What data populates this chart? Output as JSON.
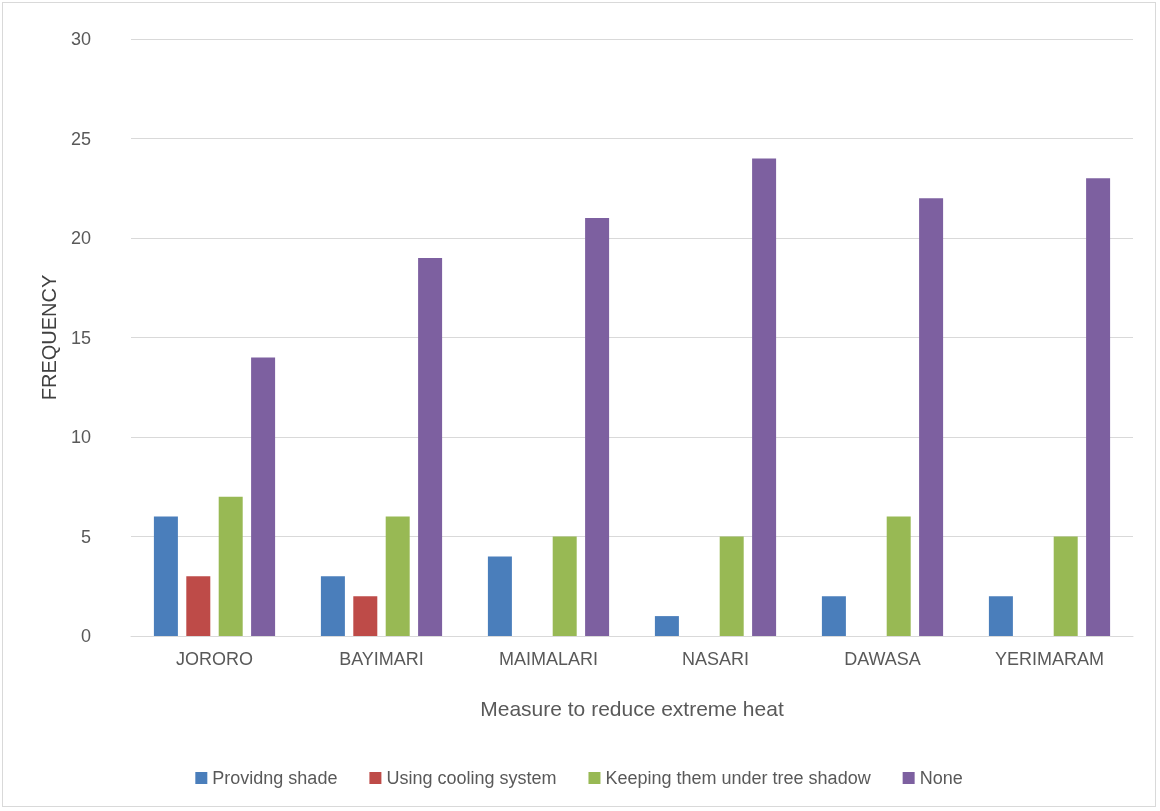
{
  "chart_data": {
    "type": "bar",
    "xlabel": "Measure to reduce extreme heat",
    "ylabel": "FREQUENCY",
    "categories": [
      "JORORO",
      "BAYIMARI",
      "MAIMALARI",
      "NASARI",
      "DAWASA",
      "YERIMARAM"
    ],
    "series": [
      {
        "name": "Providng shade",
        "color": "#4a7ebb",
        "values": [
          6,
          3,
          4,
          1,
          2,
          2
        ]
      },
      {
        "name": "Using cooling system",
        "color": "#be4b48",
        "values": [
          3,
          2,
          0,
          0,
          0,
          0
        ]
      },
      {
        "name": "Keeping them under tree shadow",
        "color": "#98b954",
        "values": [
          7,
          6,
          5,
          5,
          6,
          5
        ]
      },
      {
        "name": "None",
        "color": "#7d60a0",
        "values": [
          14,
          19,
          21,
          24,
          22,
          23
        ]
      }
    ],
    "ylim": [
      0,
      30
    ],
    "yticks": [
      0,
      5,
      10,
      15,
      20,
      25,
      30
    ],
    "grid": "y",
    "legend": "bottom"
  }
}
